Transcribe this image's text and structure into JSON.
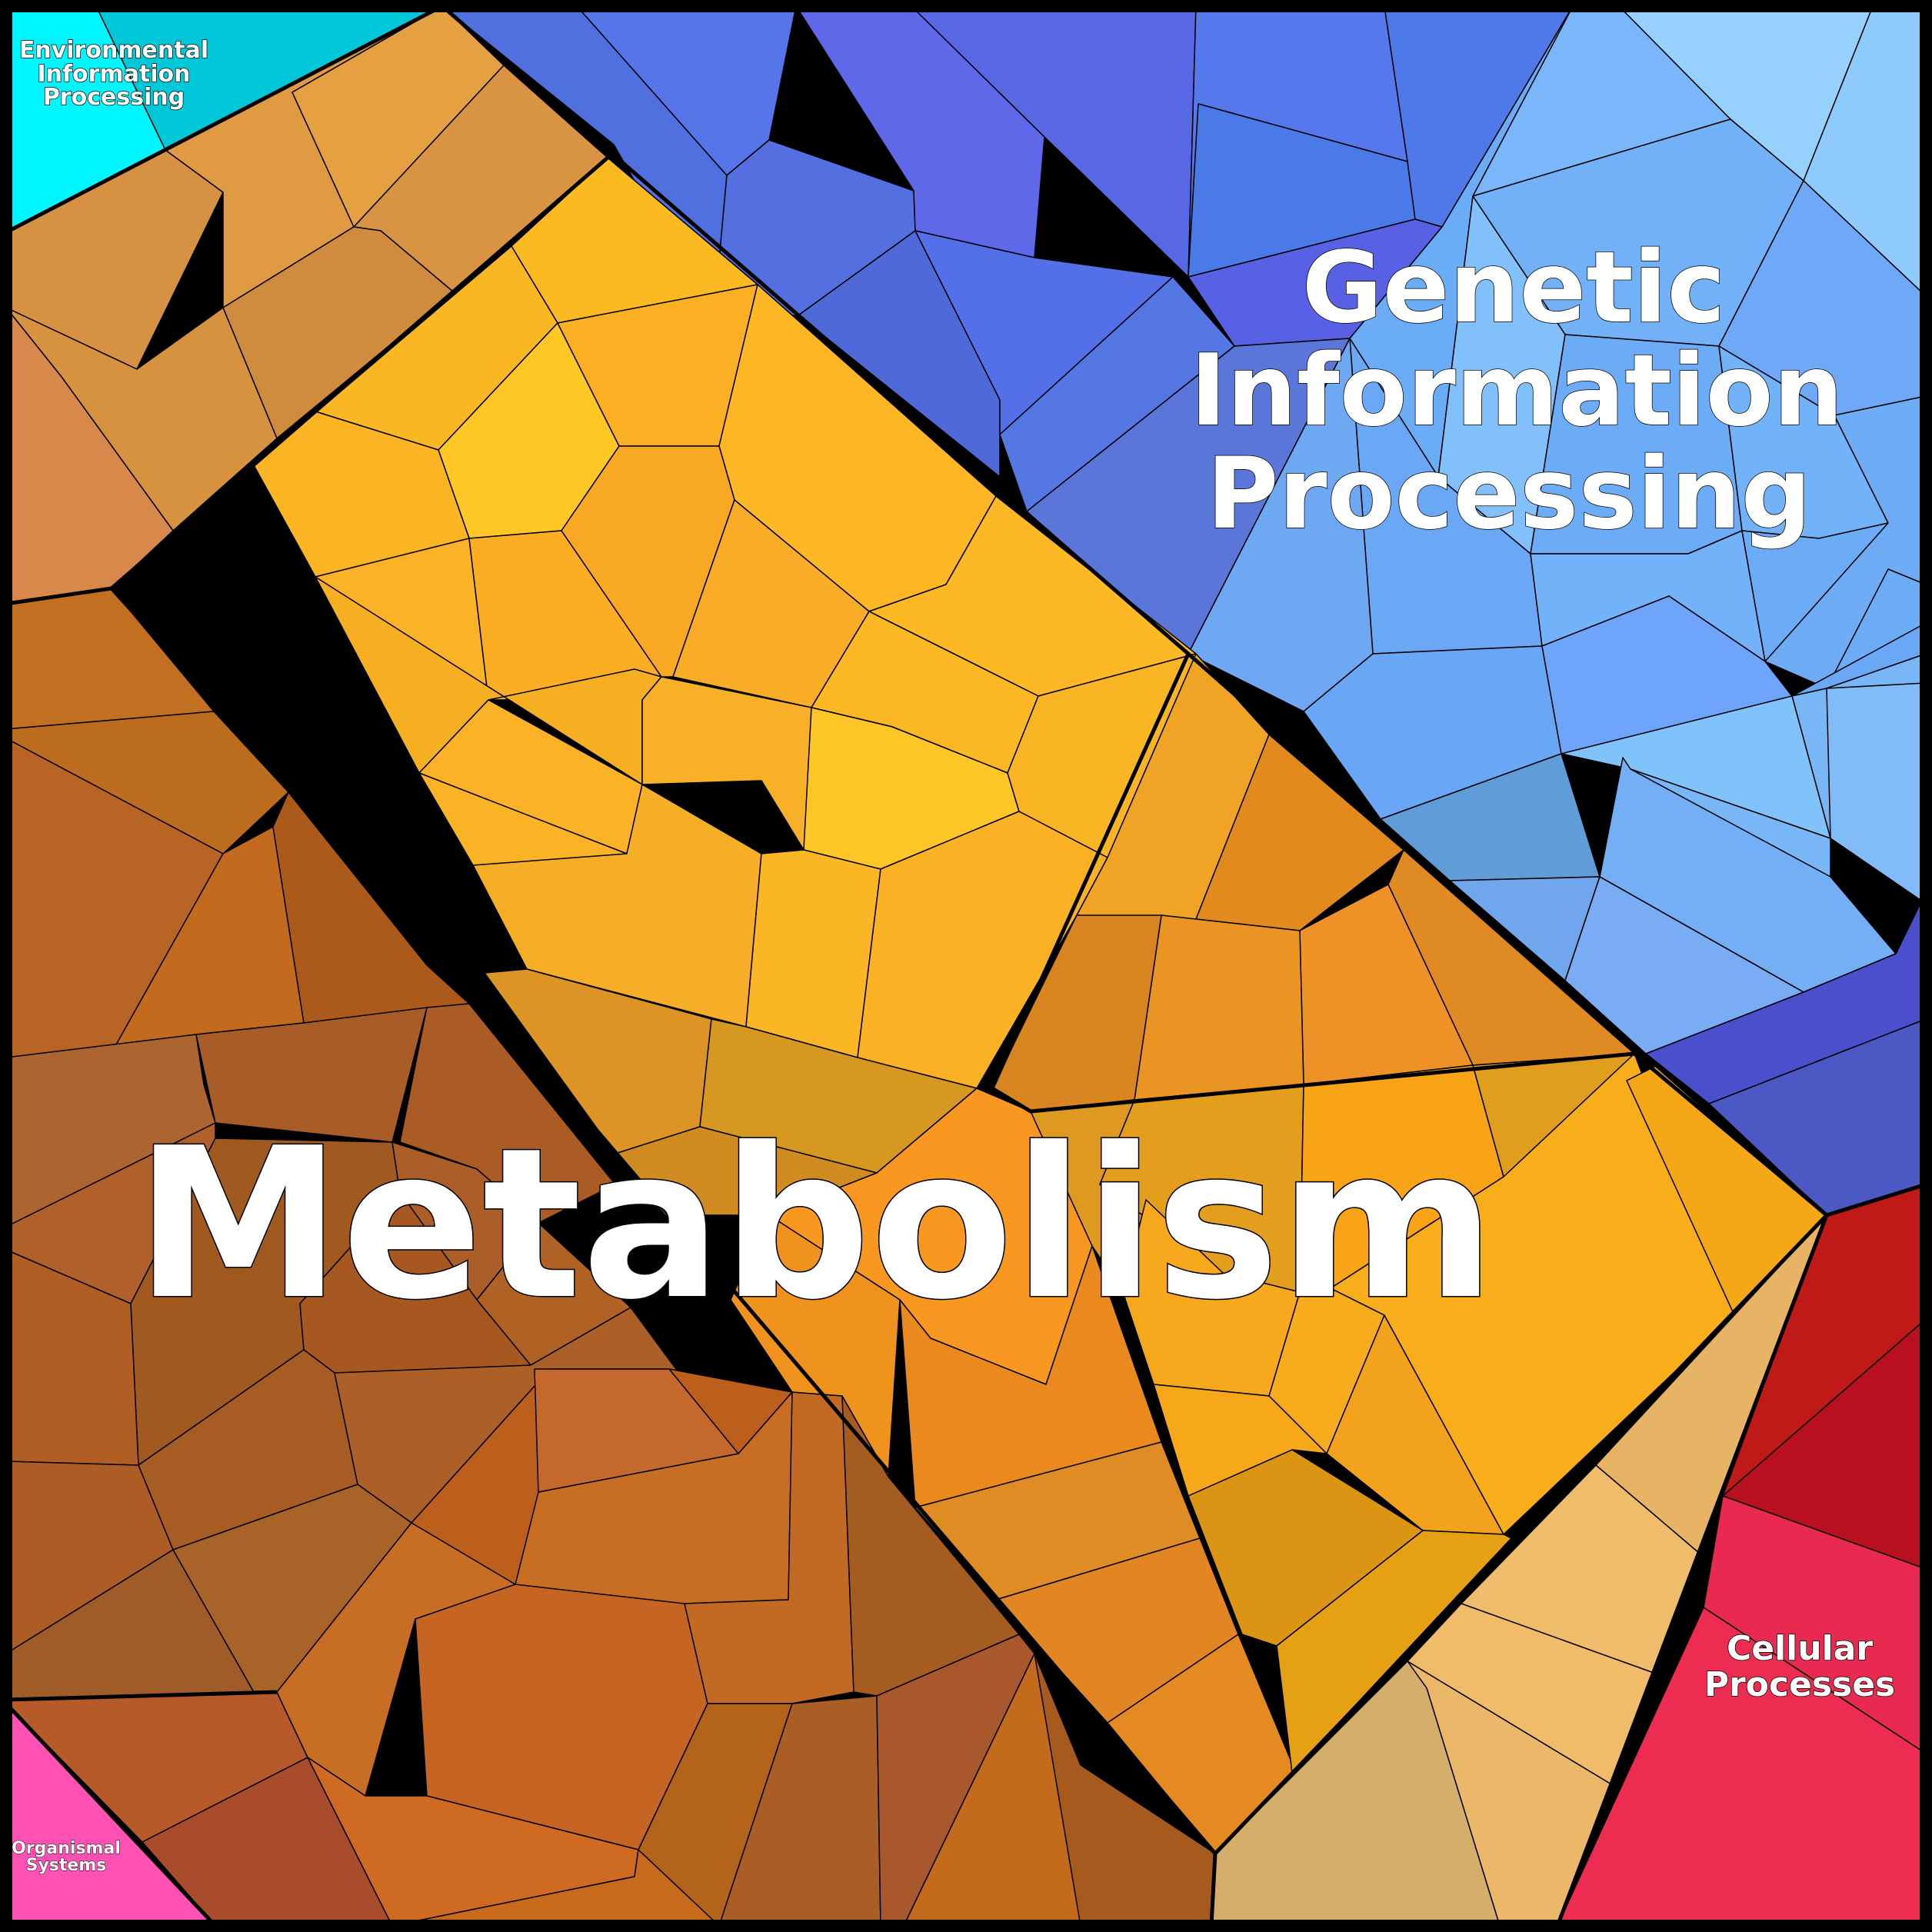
{
  "labels": {
    "metabolism": "Metabolism",
    "genetic": [
      "Genetic",
      "Information",
      "Processing"
    ],
    "environmental": [
      "Environmental",
      "Information",
      "Processing"
    ],
    "cellular": [
      "Cellular",
      "Processes"
    ],
    "organismal": [
      "Organismal",
      "Systems"
    ]
  },
  "colors": {
    "metabolism_orange": "#f6a91f",
    "metabolism_yellow": "#fdc626",
    "metabolism_brown": "#b5622a",
    "genetic_blue": "#5a72e6",
    "genetic_light_blue": "#6aa8f6",
    "environmental_cyan": "#00e8f4",
    "cellular_red": "#e8284e",
    "cellular_tan": "#e8b664",
    "organismal_pink": "#ff4fb4"
  }
}
